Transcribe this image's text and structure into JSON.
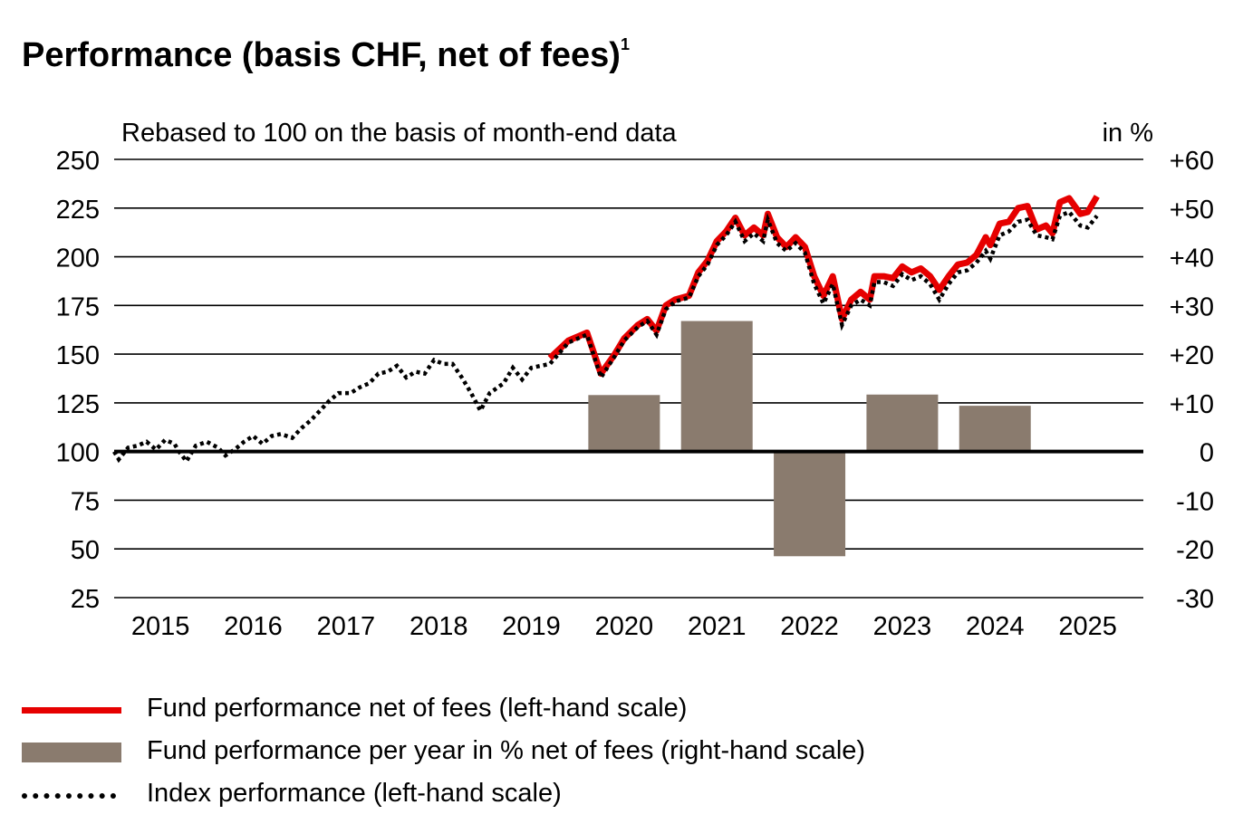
{
  "header": {
    "title": "Performance (basis CHF, net of fees)",
    "title_sup": "1",
    "subtitle": "Rebased to 100 on the basis of month-end data",
    "right_unit": "in %"
  },
  "legend": [
    {
      "label": "Fund performance net of fees (left-hand scale)",
      "swatch": "line"
    },
    {
      "label": "Fund performance per year in % net of fees (right-hand scale)",
      "swatch": "bar"
    },
    {
      "label": "Index performance (left-hand scale)",
      "swatch": "dotted"
    }
  ],
  "colors": {
    "fund": "#e60000",
    "bars": "#8a7b6e",
    "index": "#000000",
    "grid": "#000000"
  },
  "chart_data": {
    "type": "line+bar",
    "title": "Performance (basis CHF, net of fees)",
    "left_axis": {
      "label": "Rebased to 100 on the basis of month-end data",
      "range": [
        25,
        250
      ],
      "ticks": [
        "250",
        "225",
        "200",
        "175",
        "150",
        "125",
        "100",
        "75",
        "50",
        "25"
      ],
      "tick_values": [
        250,
        225,
        200,
        175,
        150,
        125,
        100,
        75,
        50,
        25
      ]
    },
    "right_axis": {
      "label": "in %",
      "range": [
        -30,
        60
      ],
      "ticks": [
        "+60",
        "+50",
        "+40",
        "+30",
        "+20",
        "+10",
        "0",
        "-10",
        "-20",
        "-30"
      ]
    },
    "x_labels": [
      "2015",
      "2016",
      "2017",
      "2018",
      "2019",
      "2020",
      "2021",
      "2022",
      "2023",
      "2024",
      "2025"
    ],
    "x_range": [
      2014.5,
      2025.6
    ],
    "bars": {
      "name": "Fund performance per year in % net of fees (right-hand scale)",
      "years": [
        2020,
        2021,
        2022,
        2023,
        2024
      ],
      "values": [
        11.6,
        26.8,
        -21.5,
        11.7,
        9.4
      ]
    },
    "series": [
      {
        "name": "Fund performance net of fees (left-hand scale)",
        "style": "solid",
        "points": [
          [
            2019.2,
            148
          ],
          [
            2019.4,
            157
          ],
          [
            2019.6,
            161
          ],
          [
            2019.75,
            140
          ],
          [
            2019.9,
            150
          ],
          [
            2020.0,
            158
          ],
          [
            2020.15,
            165
          ],
          [
            2020.25,
            168
          ],
          [
            2020.35,
            162
          ],
          [
            2020.45,
            175
          ],
          [
            2020.55,
            178
          ],
          [
            2020.7,
            180
          ],
          [
            2020.8,
            192
          ],
          [
            2020.9,
            198
          ],
          [
            2021.0,
            208
          ],
          [
            2021.1,
            213
          ],
          [
            2021.2,
            220
          ],
          [
            2021.3,
            211
          ],
          [
            2021.4,
            215
          ],
          [
            2021.5,
            211
          ],
          [
            2021.55,
            222
          ],
          [
            2021.65,
            210
          ],
          [
            2021.75,
            205
          ],
          [
            2021.85,
            210
          ],
          [
            2021.95,
            205
          ],
          [
            2022.05,
            190
          ],
          [
            2022.15,
            180
          ],
          [
            2022.25,
            190
          ],
          [
            2022.35,
            168
          ],
          [
            2022.45,
            178
          ],
          [
            2022.55,
            182
          ],
          [
            2022.65,
            178
          ],
          [
            2022.7,
            190
          ],
          [
            2022.8,
            190
          ],
          [
            2022.9,
            189
          ],
          [
            2023.0,
            195
          ],
          [
            2023.1,
            192
          ],
          [
            2023.2,
            194
          ],
          [
            2023.3,
            190
          ],
          [
            2023.4,
            183
          ],
          [
            2023.5,
            190
          ],
          [
            2023.6,
            196
          ],
          [
            2023.7,
            197
          ],
          [
            2023.8,
            201
          ],
          [
            2023.9,
            210
          ],
          [
            2023.95,
            206
          ],
          [
            2024.05,
            217
          ],
          [
            2024.15,
            218
          ],
          [
            2024.25,
            225
          ],
          [
            2024.35,
            226
          ],
          [
            2024.45,
            214
          ],
          [
            2024.55,
            216
          ],
          [
            2024.62,
            212
          ],
          [
            2024.7,
            228
          ],
          [
            2024.8,
            230
          ],
          [
            2024.92,
            222
          ],
          [
            2025.0,
            223
          ],
          [
            2025.1,
            231
          ]
        ]
      },
      {
        "name": "Index performance (left-hand scale)",
        "style": "dotted",
        "points": [
          [
            2014.5,
            100
          ],
          [
            2014.55,
            96
          ],
          [
            2014.65,
            102
          ],
          [
            2014.75,
            103
          ],
          [
            2014.85,
            105
          ],
          [
            2014.95,
            101
          ],
          [
            2015.05,
            106
          ],
          [
            2015.15,
            104
          ],
          [
            2015.2,
            100
          ],
          [
            2015.28,
            95
          ],
          [
            2015.38,
            103
          ],
          [
            2015.5,
            105
          ],
          [
            2015.62,
            102
          ],
          [
            2015.7,
            98
          ],
          [
            2015.8,
            101
          ],
          [
            2015.9,
            105
          ],
          [
            2016.0,
            108
          ],
          [
            2016.1,
            104
          ],
          [
            2016.2,
            108
          ],
          [
            2016.3,
            109
          ],
          [
            2016.42,
            107
          ],
          [
            2016.52,
            112
          ],
          [
            2016.62,
            116
          ],
          [
            2016.72,
            121
          ],
          [
            2016.82,
            126
          ],
          [
            2016.92,
            130
          ],
          [
            2017.05,
            130
          ],
          [
            2017.15,
            133
          ],
          [
            2017.25,
            135
          ],
          [
            2017.35,
            140
          ],
          [
            2017.45,
            141
          ],
          [
            2017.55,
            144
          ],
          [
            2017.65,
            138
          ],
          [
            2017.75,
            141
          ],
          [
            2017.85,
            140
          ],
          [
            2017.95,
            147
          ],
          [
            2018.05,
            145
          ],
          [
            2018.15,
            145
          ],
          [
            2018.25,
            138
          ],
          [
            2018.35,
            130
          ],
          [
            2018.45,
            121
          ],
          [
            2018.55,
            130
          ],
          [
            2018.7,
            135
          ],
          [
            2018.8,
            143
          ],
          [
            2018.9,
            137
          ],
          [
            2019.0,
            143
          ],
          [
            2019.1,
            144
          ],
          [
            2019.2,
            145
          ],
          [
            2019.4,
            156
          ],
          [
            2019.6,
            160
          ],
          [
            2019.75,
            138
          ],
          [
            2019.9,
            149
          ],
          [
            2020.0,
            157
          ],
          [
            2020.15,
            164
          ],
          [
            2020.25,
            167
          ],
          [
            2020.35,
            160
          ],
          [
            2020.45,
            173
          ],
          [
            2020.55,
            177
          ],
          [
            2020.7,
            179
          ],
          [
            2020.8,
            190
          ],
          [
            2020.9,
            196
          ],
          [
            2021.0,
            206
          ],
          [
            2021.1,
            211
          ],
          [
            2021.2,
            218
          ],
          [
            2021.3,
            208
          ],
          [
            2021.4,
            212
          ],
          [
            2021.5,
            208
          ],
          [
            2021.55,
            219
          ],
          [
            2021.65,
            207
          ],
          [
            2021.75,
            203
          ],
          [
            2021.85,
            207
          ],
          [
            2021.95,
            202
          ],
          [
            2022.05,
            186
          ],
          [
            2022.15,
            176
          ],
          [
            2022.25,
            186
          ],
          [
            2022.35,
            165
          ],
          [
            2022.45,
            175
          ],
          [
            2022.55,
            178
          ],
          [
            2022.65,
            175
          ],
          [
            2022.7,
            187
          ],
          [
            2022.8,
            187
          ],
          [
            2022.9,
            185
          ],
          [
            2023.0,
            191
          ],
          [
            2023.1,
            188
          ],
          [
            2023.2,
            190
          ],
          [
            2023.3,
            186
          ],
          [
            2023.4,
            178
          ],
          [
            2023.5,
            186
          ],
          [
            2023.6,
            192
          ],
          [
            2023.7,
            193
          ],
          [
            2023.8,
            197
          ],
          [
            2023.9,
            203
          ],
          [
            2023.95,
            199
          ],
          [
            2024.05,
            211
          ],
          [
            2024.15,
            213
          ],
          [
            2024.25,
            218
          ],
          [
            2024.35,
            219
          ],
          [
            2024.45,
            211
          ],
          [
            2024.55,
            210
          ],
          [
            2024.62,
            209
          ],
          [
            2024.7,
            221
          ],
          [
            2024.8,
            223
          ],
          [
            2024.92,
            216
          ],
          [
            2025.0,
            215
          ],
          [
            2025.1,
            221
          ]
        ]
      }
    ]
  }
}
